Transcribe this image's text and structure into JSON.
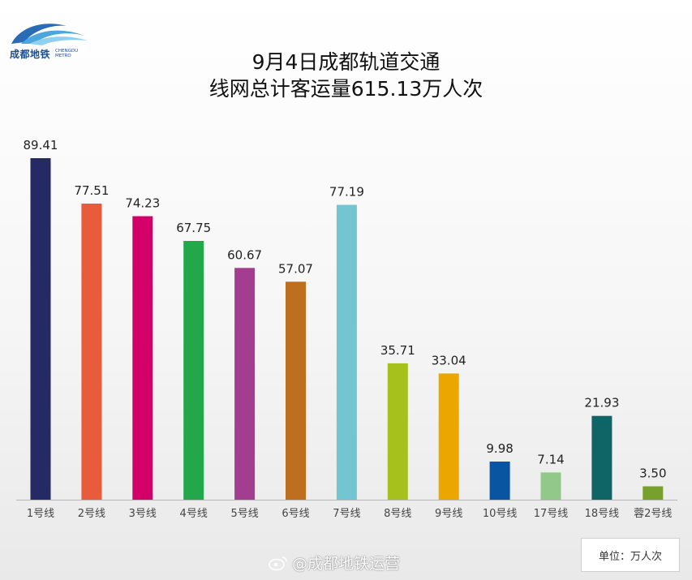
{
  "logo": {
    "name_cn": "成都地铁",
    "name_en_1": "CHENGDU",
    "name_en_2": "METRO"
  },
  "title": {
    "line1": "9月4日成都轨道交通",
    "line2": "线网总计客运量615.13万人次"
  },
  "unit_label": "单位：万人次",
  "watermark": "@成都地铁运营",
  "chart_data": {
    "type": "bar",
    "title": "9月4日成都轨道交通 线网总计客运量615.13万人次",
    "xlabel": "",
    "ylabel": "",
    "unit": "单位：万人次",
    "categories": [
      "1号线",
      "2号线",
      "3号线",
      "4号线",
      "5号线",
      "6号线",
      "7号线",
      "8号线",
      "9号线",
      "10号线",
      "17号线",
      "18号线",
      "蓉2号线"
    ],
    "values": [
      89.41,
      77.51,
      74.23,
      67.75,
      60.67,
      57.07,
      77.19,
      35.71,
      33.04,
      9.98,
      7.14,
      21.93,
      3.5
    ],
    "value_labels": [
      "89.41",
      "77.51",
      "74.23",
      "67.75",
      "60.67",
      "57.07",
      "77.19",
      "35.71",
      "33.04",
      "9.98",
      "7.14",
      "21.93",
      "3.50"
    ],
    "colors": [
      "#252a65",
      "#e85c3c",
      "#d4006a",
      "#22a84b",
      "#a33d8f",
      "#bd6e1f",
      "#74c5d2",
      "#a6c01c",
      "#eba700",
      "#0a55a1",
      "#92c98a",
      "#0f6565",
      "#78a02c"
    ],
    "ylim": [
      0,
      100
    ],
    "grid": false,
    "legend": "none"
  }
}
